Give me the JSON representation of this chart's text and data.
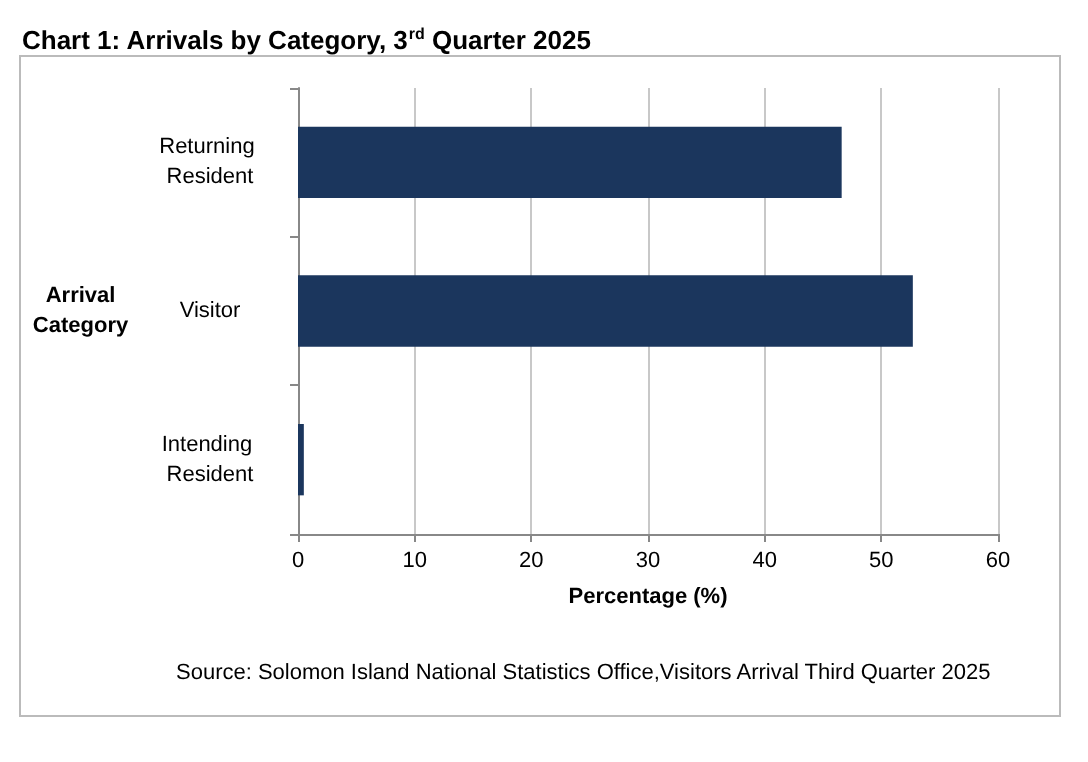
{
  "chart_data": {
    "type": "bar",
    "orientation": "horizontal",
    "title": "Chart 1: Arrivals by Category, 3$^{rd}$ Quarter 2025",
    "xlabel": "Percentage (%)",
    "ylabel": "Arrival Category",
    "categories": [
      "Returning Resident",
      "Visitor",
      "Intending Resident"
    ],
    "values": [
      46.6,
      52.7,
      0.5
    ],
    "color": "#1b365d",
    "xlim": [
      0,
      60
    ],
    "xticks": [
      0,
      10,
      20,
      30,
      40,
      50,
      60
    ],
    "grid": "x",
    "annotations": [
      "Source: Solomon Island National Statistics Office,Visitors Arrival Third Quarter 2025"
    ]
  }
}
